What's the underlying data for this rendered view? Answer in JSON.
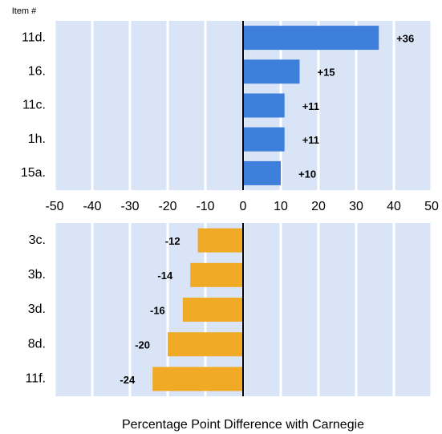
{
  "chart_data": [
    {
      "type": "barh",
      "y_label": "Item #",
      "categories": [
        "11d.",
        "16.",
        "11c.",
        "1h.",
        "15a."
      ],
      "values": [
        36,
        15,
        11,
        11,
        10
      ],
      "value_labels": [
        "+36",
        "+15",
        "+11",
        "+11",
        "+10"
      ],
      "color": "#3f7fdc",
      "xlim": [
        -50,
        50
      ],
      "xticks": [
        -50,
        -40,
        -30,
        -20,
        -10,
        0,
        10,
        20,
        30,
        40,
        50
      ],
      "grid": true
    },
    {
      "type": "barh",
      "x_label": "Percentage Point Difference with Carnegie",
      "categories": [
        "3c.",
        "3b.",
        "3d.",
        "8d.",
        "11f."
      ],
      "values": [
        -12,
        -14,
        -16,
        -20,
        -24
      ],
      "value_labels": [
        "-12",
        "-14",
        "-16",
        "-20",
        "-24"
      ],
      "color": "#f0aa26",
      "xlim": [
        -50,
        50
      ],
      "xticks": [
        -50,
        -40,
        -30,
        -20,
        -10,
        0,
        10,
        20,
        30,
        40,
        50
      ],
      "grid": true
    }
  ]
}
